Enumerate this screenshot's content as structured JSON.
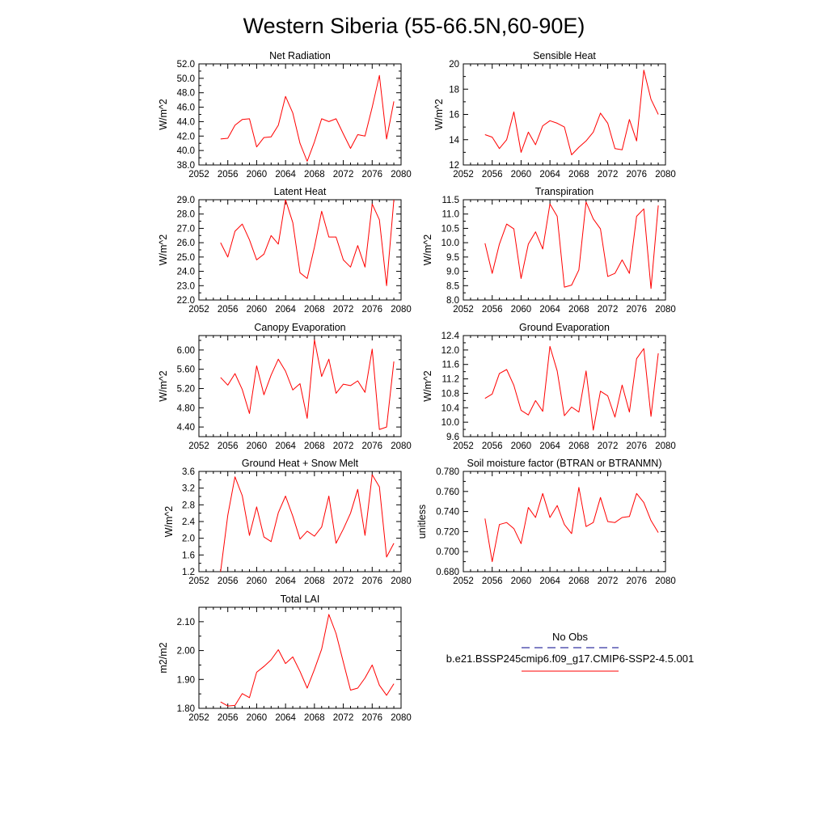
{
  "title": "Western Siberia (55-66.5N,60-90E)",
  "colors": {
    "model_line": "#ff0000",
    "obs_line": "#00008b",
    "axis": "#000000"
  },
  "legend": {
    "obs_label": "No Obs",
    "model_label": "b.e21.BSSP245cmip6.f09_g17.CMIP6-SSP2-4.5.001"
  },
  "chart_data": [
    {
      "type": "line",
      "title": "Net Radiation",
      "ylabel": "W/m^2",
      "xlim": [
        2052,
        2080
      ],
      "ylim": [
        38.0,
        52.0
      ],
      "xticks": [
        "2052",
        "2056",
        "2060",
        "2064",
        "2068",
        "2072",
        "2076",
        "2080"
      ],
      "yticks": [
        "38.0",
        "40.0",
        "42.0",
        "44.0",
        "46.0",
        "48.0",
        "50.0",
        "52.0"
      ],
      "x": [
        2055,
        2056,
        2057,
        2058,
        2059,
        2060,
        2061,
        2062,
        2063,
        2064,
        2065,
        2066,
        2067,
        2068,
        2069,
        2070,
        2071,
        2072,
        2073,
        2074,
        2075,
        2076,
        2077,
        2078,
        2079
      ],
      "series": [
        {
          "values": [
            41.6,
            41.7,
            43.5,
            44.3,
            44.4,
            40.5,
            41.8,
            41.9,
            43.5,
            47.5,
            45.2,
            41.0,
            38.5,
            41.2,
            44.4,
            44.0,
            44.4,
            42.3,
            40.3,
            42.2,
            42.0,
            46.0,
            50.4,
            41.6,
            46.8
          ]
        }
      ]
    },
    {
      "type": "line",
      "title": "Sensible Heat",
      "ylabel": "W/m^2",
      "xlim": [
        2052,
        2080
      ],
      "ylim": [
        12,
        20
      ],
      "xticks": [
        "2052",
        "2056",
        "2060",
        "2064",
        "2068",
        "2072",
        "2076",
        "2080"
      ],
      "yticks": [
        "12",
        "14",
        "16",
        "18",
        "20"
      ],
      "x": [
        2055,
        2056,
        2057,
        2058,
        2059,
        2060,
        2061,
        2062,
        2063,
        2064,
        2065,
        2066,
        2067,
        2068,
        2069,
        2070,
        2071,
        2072,
        2073,
        2074,
        2075,
        2076,
        2077,
        2078,
        2079
      ],
      "series": [
        {
          "values": [
            14.4,
            14.2,
            13.3,
            14.0,
            16.2,
            13.0,
            14.6,
            13.6,
            15.1,
            15.5,
            15.3,
            15.0,
            12.8,
            13.4,
            13.9,
            14.6,
            16.1,
            15.3,
            13.3,
            13.2,
            15.6,
            13.9,
            19.5,
            17.2,
            16.0
          ]
        }
      ]
    },
    {
      "type": "line",
      "title": "Latent Heat",
      "ylabel": "W/m^2",
      "xlim": [
        2052,
        2080
      ],
      "ylim": [
        22.0,
        29.0
      ],
      "xticks": [
        "2052",
        "2056",
        "2060",
        "2064",
        "2068",
        "2072",
        "2076",
        "2080"
      ],
      "yticks": [
        "22.0",
        "23.0",
        "24.0",
        "25.0",
        "26.0",
        "27.0",
        "28.0",
        "29.0"
      ],
      "x": [
        2055,
        2056,
        2057,
        2058,
        2059,
        2060,
        2061,
        2062,
        2063,
        2064,
        2065,
        2066,
        2067,
        2068,
        2069,
        2070,
        2071,
        2072,
        2073,
        2074,
        2075,
        2076,
        2077,
        2078,
        2079
      ],
      "series": [
        {
          "values": [
            26.0,
            25.0,
            26.8,
            27.3,
            26.2,
            24.8,
            25.2,
            26.5,
            25.9,
            29.0,
            27.4,
            23.9,
            23.5,
            25.7,
            28.2,
            26.4,
            26.4,
            24.8,
            24.3,
            25.8,
            24.3,
            28.7,
            27.6,
            23.0,
            29.0
          ]
        }
      ]
    },
    {
      "type": "line",
      "title": "Transpiration",
      "ylabel": "W/m^2",
      "xlim": [
        2052,
        2080
      ],
      "ylim": [
        8.0,
        11.5
      ],
      "xticks": [
        "2052",
        "2056",
        "2060",
        "2064",
        "2068",
        "2072",
        "2076",
        "2080"
      ],
      "yticks": [
        "8.0",
        "8.5",
        "9.0",
        "9.5",
        "10.0",
        "10.5",
        "11.0",
        "11.5"
      ],
      "x": [
        2055,
        2056,
        2057,
        2058,
        2059,
        2060,
        2061,
        2062,
        2063,
        2064,
        2065,
        2066,
        2067,
        2068,
        2069,
        2070,
        2071,
        2072,
        2073,
        2074,
        2075,
        2076,
        2077,
        2078,
        2079
      ],
      "series": [
        {
          "values": [
            9.98,
            8.93,
            9.95,
            10.65,
            10.48,
            8.75,
            9.95,
            10.38,
            9.78,
            11.35,
            10.92,
            8.45,
            8.52,
            9.05,
            11.42,
            10.83,
            10.48,
            8.82,
            8.93,
            9.4,
            8.93,
            10.92,
            11.18,
            8.4,
            11.3
          ]
        }
      ]
    },
    {
      "type": "line",
      "title": "Canopy Evaporation",
      "ylabel": "W/m^2",
      "xlim": [
        2052,
        2080
      ],
      "ylim": [
        4.2,
        6.3
      ],
      "xticks": [
        "2052",
        "2056",
        "2060",
        "2064",
        "2068",
        "2072",
        "2076",
        "2080"
      ],
      "yticks": [
        "4.40",
        "4.80",
        "5.20",
        "5.60",
        "6.00"
      ],
      "x": [
        2055,
        2056,
        2057,
        2058,
        2059,
        2060,
        2061,
        2062,
        2063,
        2064,
        2065,
        2066,
        2067,
        2068,
        2069,
        2070,
        2071,
        2072,
        2073,
        2074,
        2075,
        2076,
        2077,
        2078,
        2079
      ],
      "series": [
        {
          "values": [
            5.43,
            5.27,
            5.51,
            5.18,
            4.68,
            5.67,
            5.07,
            5.48,
            5.81,
            5.56,
            5.17,
            5.3,
            4.58,
            6.21,
            5.45,
            5.81,
            5.1,
            5.29,
            5.26,
            5.36,
            5.12,
            6.02,
            4.35,
            4.4,
            5.76
          ]
        }
      ]
    },
    {
      "type": "line",
      "title": "Ground Evaporation",
      "ylabel": "W/m^2",
      "xlim": [
        2052,
        2080
      ],
      "ylim": [
        9.6,
        12.4
      ],
      "xticks": [
        "2052",
        "2056",
        "2060",
        "2064",
        "2068",
        "2072",
        "2076",
        "2080"
      ],
      "yticks": [
        "9.6",
        "10.0",
        "10.4",
        "10.8",
        "11.2",
        "11.6",
        "12.0",
        "12.4"
      ],
      "x": [
        2055,
        2056,
        2057,
        2058,
        2059,
        2060,
        2061,
        2062,
        2063,
        2064,
        2065,
        2066,
        2067,
        2068,
        2069,
        2070,
        2071,
        2072,
        2073,
        2074,
        2075,
        2076,
        2077,
        2078,
        2079
      ],
      "series": [
        {
          "values": [
            10.66,
            10.78,
            11.35,
            11.46,
            11.02,
            10.33,
            10.2,
            10.6,
            10.3,
            12.1,
            11.42,
            10.18,
            10.42,
            10.28,
            11.42,
            9.78,
            10.86,
            10.73,
            10.14,
            11.03,
            10.28,
            11.76,
            12.04,
            10.16,
            11.91
          ]
        }
      ]
    },
    {
      "type": "line",
      "title": "Ground Heat + Snow Melt",
      "ylabel": "W/m^2",
      "xlim": [
        2052,
        2080
      ],
      "ylim": [
        1.2,
        3.6
      ],
      "xticks": [
        "2052",
        "2056",
        "2060",
        "2064",
        "2068",
        "2072",
        "2076",
        "2080"
      ],
      "yticks": [
        "1.2",
        "1.6",
        "2.0",
        "2.4",
        "2.8",
        "3.2",
        "3.6"
      ],
      "x": [
        2055,
        2056,
        2057,
        2058,
        2059,
        2060,
        2061,
        2062,
        2063,
        2064,
        2065,
        2066,
        2067,
        2068,
        2069,
        2070,
        2071,
        2072,
        2073,
        2074,
        2075,
        2076,
        2077,
        2078,
        2079
      ],
      "series": [
        {
          "values": [
            1.2,
            2.55,
            3.47,
            3.02,
            2.07,
            2.75,
            2.03,
            1.92,
            2.61,
            3.01,
            2.53,
            1.98,
            2.17,
            2.05,
            2.27,
            3.01,
            1.88,
            2.22,
            2.6,
            3.17,
            2.07,
            3.52,
            3.23,
            1.55,
            1.88
          ]
        }
      ]
    },
    {
      "type": "line",
      "title": "Soil moisture factor (BTRAN or BTRANMN)",
      "ylabel": "unitless",
      "xlim": [
        2052,
        2080
      ],
      "ylim": [
        0.68,
        0.78
      ],
      "xticks": [
        "2052",
        "2056",
        "2060",
        "2064",
        "2068",
        "2072",
        "2076",
        "2080"
      ],
      "yticks": [
        "0.680",
        "0.700",
        "0.720",
        "0.740",
        "0.760",
        "0.780"
      ],
      "x": [
        2055,
        2056,
        2057,
        2058,
        2059,
        2060,
        2061,
        2062,
        2063,
        2064,
        2065,
        2066,
        2067,
        2068,
        2069,
        2070,
        2071,
        2072,
        2073,
        2074,
        2075,
        2076,
        2077,
        2078,
        2079
      ],
      "series": [
        {
          "values": [
            0.733,
            0.69,
            0.727,
            0.729,
            0.723,
            0.708,
            0.744,
            0.734,
            0.758,
            0.734,
            0.746,
            0.727,
            0.718,
            0.764,
            0.725,
            0.729,
            0.754,
            0.73,
            0.729,
            0.734,
            0.735,
            0.758,
            0.749,
            0.731,
            0.719
          ]
        }
      ]
    },
    {
      "type": "line",
      "title": "Total LAI",
      "ylabel": "m2/m2",
      "xlim": [
        2052,
        2080
      ],
      "ylim": [
        1.8,
        2.15
      ],
      "xticks": [
        "2052",
        "2056",
        "2060",
        "2064",
        "2068",
        "2072",
        "2076",
        "2080"
      ],
      "yticks": [
        "1.80",
        "1.90",
        "2.00",
        "2.10"
      ],
      "x": [
        2055,
        2056,
        2057,
        2058,
        2059,
        2060,
        2061,
        2062,
        2063,
        2064,
        2065,
        2066,
        2067,
        2068,
        2069,
        2070,
        2071,
        2072,
        2073,
        2074,
        2075,
        2076,
        2077,
        2078,
        2079
      ],
      "series": [
        {
          "values": [
            1.822,
            1.808,
            1.81,
            1.851,
            1.837,
            1.925,
            1.945,
            1.968,
            2.003,
            1.955,
            1.978,
            1.928,
            1.87,
            1.935,
            2.005,
            2.125,
            2.059,
            1.96,
            1.863,
            1.87,
            1.905,
            1.95,
            1.88,
            1.845,
            1.885
          ]
        }
      ]
    }
  ]
}
